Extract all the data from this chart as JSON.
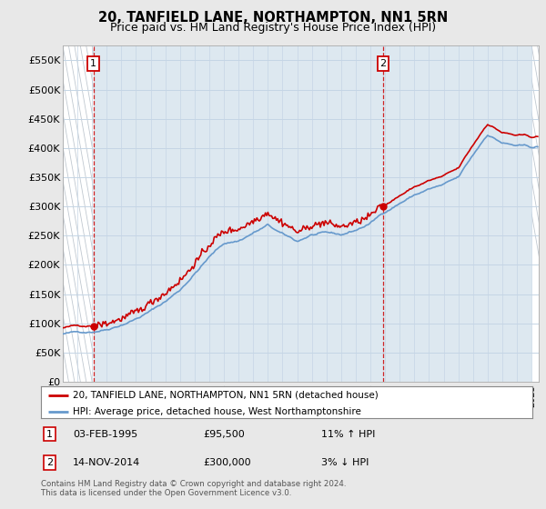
{
  "title": "20, TANFIELD LANE, NORTHAMPTON, NN1 5RN",
  "subtitle": "Price paid vs. HM Land Registry's House Price Index (HPI)",
  "ylim": [
    0,
    575000
  ],
  "yticks": [
    0,
    50000,
    100000,
    150000,
    200000,
    250000,
    300000,
    350000,
    400000,
    450000,
    500000,
    550000
  ],
  "ytick_labels": [
    "£0",
    "£50K",
    "£100K",
    "£150K",
    "£200K",
    "£250K",
    "£300K",
    "£350K",
    "£400K",
    "£450K",
    "£500K",
    "£550K"
  ],
  "background_color": "#e8e8e8",
  "plot_bg_color": "#dde8f0",
  "hpi_color": "#6699cc",
  "price_color": "#cc0000",
  "sale1_year": 1995.09,
  "sale1_price": 95500,
  "sale2_year": 2014.87,
  "sale2_price": 300000,
  "legend_line1": "20, TANFIELD LANE, NORTHAMPTON, NN1 5RN (detached house)",
  "legend_line2": "HPI: Average price, detached house, West Northamptonshire",
  "footer": "Contains HM Land Registry data © Crown copyright and database right 2024.\nThis data is licensed under the Open Government Licence v3.0.",
  "title_fontsize": 10.5,
  "subtitle_fontsize": 9,
  "tick_fontsize": 8,
  "hatch_color": "#c0c8d0",
  "grid_color": "#c5d5e5",
  "xstart": 1993,
  "xend": 2025.5
}
